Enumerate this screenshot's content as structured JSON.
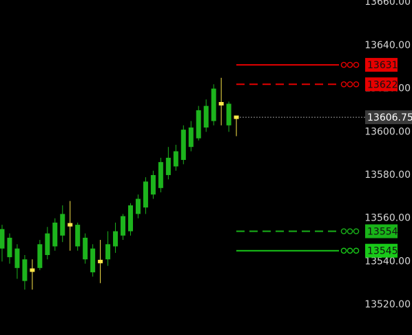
{
  "chart_data": {
    "type": "candlestick",
    "open": [
      13546,
      13551,
      13546,
      13541,
      13536,
      13537,
      13543,
      13547,
      13552,
      13557,
      13557,
      13551,
      13546,
      13540,
      13541,
      13547,
      13552,
      13554,
      13562,
      13565,
      13571,
      13574,
      13580,
      13584,
      13587,
      13593,
      13597,
      13602,
      13605,
      13613,
      13613,
      13606.75
    ],
    "high": [
      13557,
      13553,
      13548,
      13543,
      13541,
      13550,
      13556,
      13560,
      13566,
      13568,
      13558,
      13553,
      13548,
      13550,
      13554,
      13558,
      13562,
      13567,
      13571,
      13579,
      13582,
      13588,
      13593,
      13594,
      13603,
      13605,
      13612,
      13615,
      13622,
      13625,
      13614,
      13607
    ],
    "low": [
      13540,
      13539,
      13532,
      13527,
      13527,
      13536,
      13541,
      13545,
      13549,
      13545,
      13545,
      13539,
      13533,
      13530,
      13538,
      13544,
      13550,
      13552,
      13560,
      13562,
      13569,
      13572,
      13578,
      13582,
      13585,
      13591,
      13596,
      13600,
      13603,
      13603,
      13600,
      13598
    ],
    "close": [
      13555,
      13542,
      13537,
      13531,
      13536,
      13548,
      13553,
      13558,
      13562,
      13557,
      13547,
      13541,
      13535,
      13540,
      13548,
      13554,
      13561,
      13566,
      13569,
      13577,
      13580,
      13586,
      13588,
      13591,
      13601,
      13602,
      13610,
      13612,
      13620,
      13613,
      13603,
      13606.75
    ],
    "color": "#1db41d",
    "doji_color": "#ffe84a",
    "ylim": [
      13506,
      13661
    ],
    "yticks": [
      {
        "value": 13520,
        "label": "13520.00"
      },
      {
        "value": 13540,
        "label": "13540.00"
      },
      {
        "value": 13560,
        "label": "13560.00"
      },
      {
        "value": 13580,
        "label": "13580.00"
      },
      {
        "value": 13600,
        "label": "13600.00"
      },
      {
        "value": 13620,
        "label": "13620.00"
      },
      {
        "value": 13640,
        "label": "13640.00"
      },
      {
        "value": 13660,
        "label": "13660.00"
      }
    ],
    "orders": [
      {
        "price": 13631,
        "color": "#e60000",
        "style": "solid"
      },
      {
        "price": 13622,
        "color": "#e60000",
        "style": "dashed"
      },
      {
        "price": 13554,
        "color": "#19b319",
        "style": "dashed"
      },
      {
        "price": 13545,
        "color": "#19c919",
        "style": "solid"
      }
    ],
    "last_price": 13606.75
  }
}
